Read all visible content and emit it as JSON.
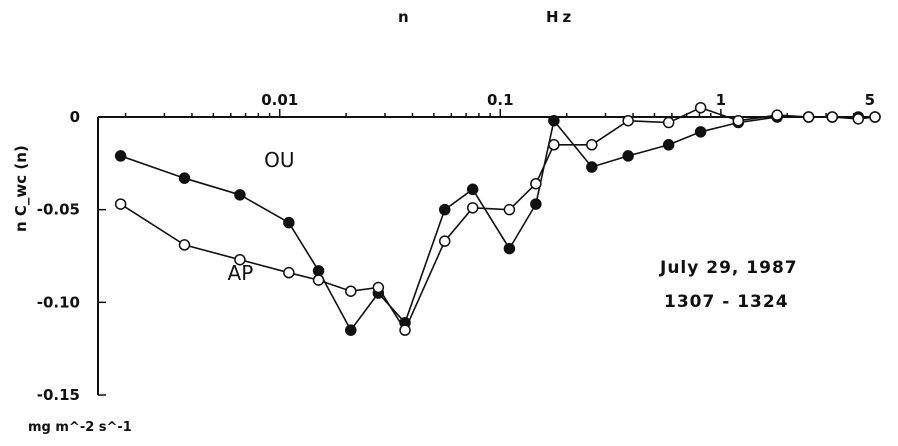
{
  "chart_data": {
    "type": "line",
    "title": "",
    "xlabel": "n",
    "xunit": "Hz",
    "ylabel": "n C_wc (n)",
    "yunit": "mg m^-2 s^-1",
    "xscale": "log",
    "xlim": [
      0.0015,
      5
    ],
    "ylim": [
      -0.15,
      0
    ],
    "x_ticks": [
      {
        "value": 0.01,
        "label": "0.01"
      },
      {
        "value": 0.1,
        "label": "0.1"
      },
      {
        "value": 1,
        "label": "1"
      },
      {
        "value": 5,
        "label": "5"
      }
    ],
    "y_ticks": [
      {
        "value": 0,
        "label": "0"
      },
      {
        "value": -0.05,
        "label": "-0.05"
      },
      {
        "value": -0.1,
        "label": "-0.10"
      },
      {
        "value": -0.15,
        "label": "-0.15"
      }
    ],
    "grid": false,
    "legend": "none; series labelled inline",
    "annotations": [
      "July 29, 1987",
      "1307 - 1324"
    ],
    "series": [
      {
        "name": "OU",
        "marker": "filled-circle",
        "points": [
          [
            0.0019,
            -0.021
          ],
          [
            0.0037,
            -0.033
          ],
          [
            0.0066,
            -0.042
          ],
          [
            0.011,
            -0.057
          ],
          [
            0.015,
            -0.083
          ],
          [
            0.021,
            -0.115
          ],
          [
            0.028,
            -0.095
          ],
          [
            0.037,
            -0.111
          ],
          [
            0.056,
            -0.05
          ],
          [
            0.075,
            -0.039
          ],
          [
            0.11,
            -0.071
          ],
          [
            0.145,
            -0.047
          ],
          [
            0.175,
            -0.002
          ],
          [
            0.26,
            -0.027
          ],
          [
            0.38,
            -0.021
          ],
          [
            0.58,
            -0.015
          ],
          [
            0.81,
            -0.008
          ],
          [
            1.2,
            -0.003
          ],
          [
            1.8,
            0.0
          ],
          [
            2.5,
            0.0
          ],
          [
            3.2,
            0.0
          ],
          [
            4.2,
            0.0
          ],
          [
            5.0,
            0.0
          ]
        ]
      },
      {
        "name": "AP",
        "marker": "open-circle",
        "points": [
          [
            0.0019,
            -0.047
          ],
          [
            0.0037,
            -0.069
          ],
          [
            0.0066,
            -0.077
          ],
          [
            0.011,
            -0.084
          ],
          [
            0.015,
            -0.088
          ],
          [
            0.021,
            -0.094
          ],
          [
            0.028,
            -0.092
          ],
          [
            0.037,
            -0.115
          ],
          [
            0.056,
            -0.067
          ],
          [
            0.075,
            -0.049
          ],
          [
            0.11,
            -0.05
          ],
          [
            0.145,
            -0.036
          ],
          [
            0.175,
            -0.015
          ],
          [
            0.26,
            -0.015
          ],
          [
            0.38,
            -0.002
          ],
          [
            0.58,
            -0.003
          ],
          [
            0.81,
            0.005
          ],
          [
            1.2,
            -0.002
          ],
          [
            1.8,
            0.001
          ],
          [
            2.5,
            0.0
          ],
          [
            3.2,
            0.0
          ],
          [
            4.2,
            -0.001
          ],
          [
            5.0,
            0.0
          ]
        ]
      }
    ]
  }
}
